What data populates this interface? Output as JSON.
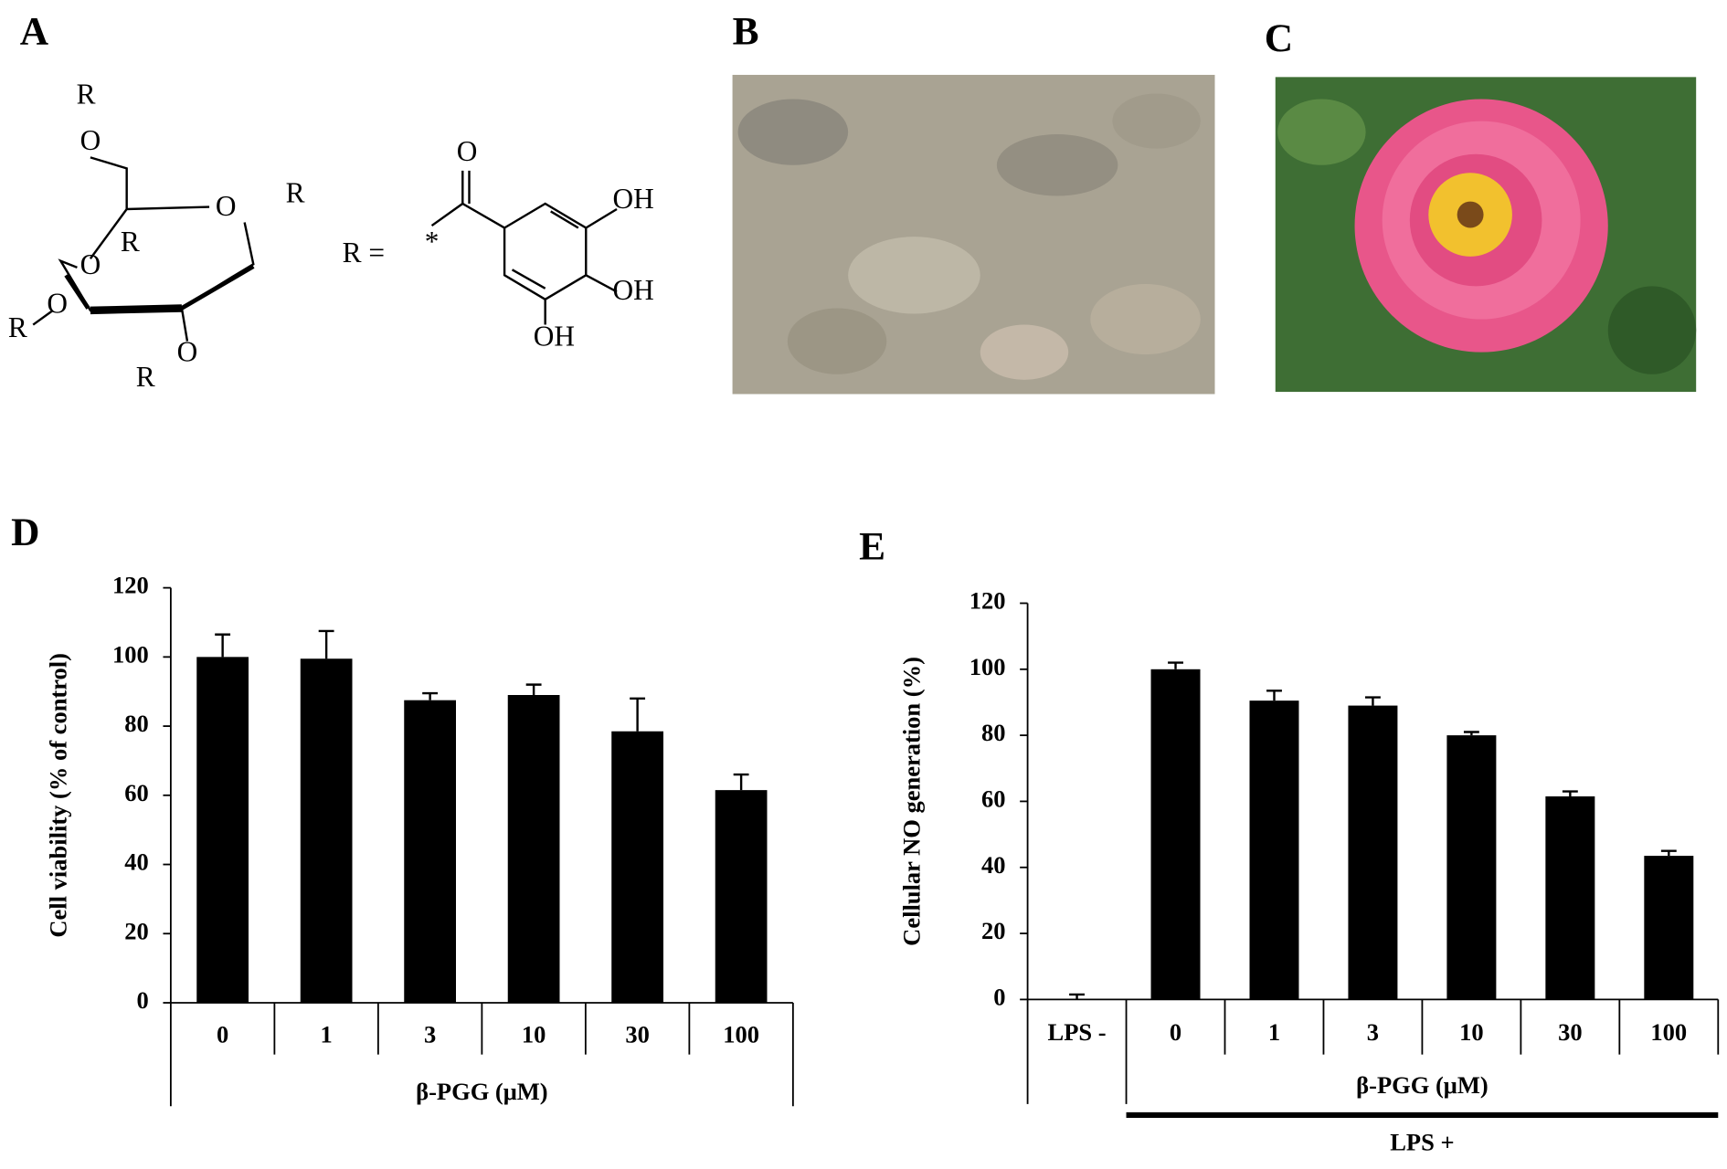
{
  "panels": {
    "a": "A",
    "b": "B",
    "c": "C",
    "d": "D",
    "e": "E"
  },
  "structure": {
    "labels": [
      "R",
      "O",
      "O",
      "R",
      "O",
      "R",
      "R",
      "O",
      "O",
      "R",
      "O",
      "R =",
      "*",
      "OH",
      "OH",
      "OH"
    ]
  },
  "chart_data": [
    {
      "type": "bar",
      "ylabel": "Cell viability (% of control)",
      "xlabel": "β-PGG (μM)",
      "categories": [
        "0",
        "1",
        "3",
        "10",
        "30",
        "100"
      ],
      "values": [
        100,
        99.5,
        87.5,
        89,
        78.5,
        61.5
      ],
      "errors": [
        6.5,
        8,
        2,
        3,
        9.5,
        4.5
      ],
      "color": "#000000",
      "ylim": [
        0,
        120
      ],
      "yticks": [
        0,
        20,
        40,
        60,
        80,
        100,
        120
      ]
    },
    {
      "type": "bar",
      "ylabel": "Cellular NO generation (%)",
      "xlabel": "β-PGG (μM)",
      "group_label": "LPS +",
      "categories": [
        "LPS -",
        "0",
        "1",
        "3",
        "10",
        "30",
        "100"
      ],
      "values": [
        0,
        100,
        90.5,
        89,
        80,
        61.5,
        43.5
      ],
      "errors": [
        1.5,
        2,
        3,
        2.5,
        1,
        1.5,
        1.5
      ],
      "color": "#000000",
      "ylim": [
        0,
        120
      ],
      "yticks": [
        0,
        20,
        40,
        60,
        80,
        100,
        120
      ]
    }
  ]
}
